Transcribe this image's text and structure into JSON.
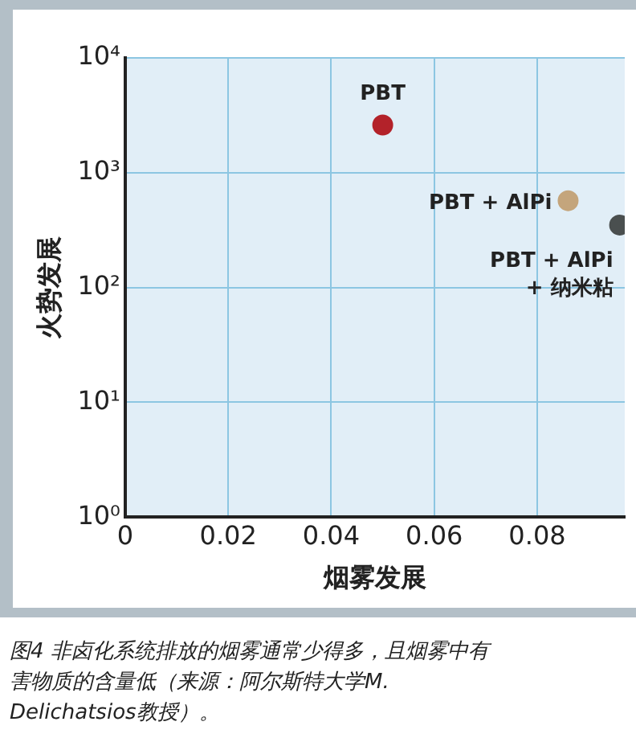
{
  "chart_data": {
    "type": "scatter",
    "xlabel": "烟雾发展",
    "ylabel": "火势发展",
    "series": [
      {
        "name": "PBT",
        "color": "#b3222a",
        "x": [
          0.05
        ],
        "values": [
          2600
        ]
      },
      {
        "name": "PBT + AlPi",
        "color": "#c4a57c",
        "x": [
          0.086
        ],
        "values": [
          570
        ]
      },
      {
        "name": "PBT + AlPi\n+ 纳米粘",
        "color": "#4a4f4f",
        "x": [
          0.096
        ],
        "values": [
          350
        ]
      }
    ],
    "xlim": [
      0,
      0.097
    ],
    "xticks": [
      0,
      0.02,
      0.04,
      0.06,
      0.08
    ],
    "ylim": [
      1,
      10000
    ],
    "yticks": [
      {
        "value": 1,
        "label": "10⁰"
      },
      {
        "value": 10,
        "label": "10¹"
      },
      {
        "value": 100,
        "label": "10²"
      },
      {
        "value": 1000,
        "label": "10³"
      },
      {
        "value": 10000,
        "label": "10⁴"
      }
    ],
    "log": "y",
    "grid": true,
    "legend": false,
    "marker": "circle",
    "annotations": [
      "图4  非卤化系统排放的烟雾通常少得多，且烟雾中有害物质的含量低（来源：阿尔斯特大学M. Delichatsios教授）。"
    ]
  }
}
